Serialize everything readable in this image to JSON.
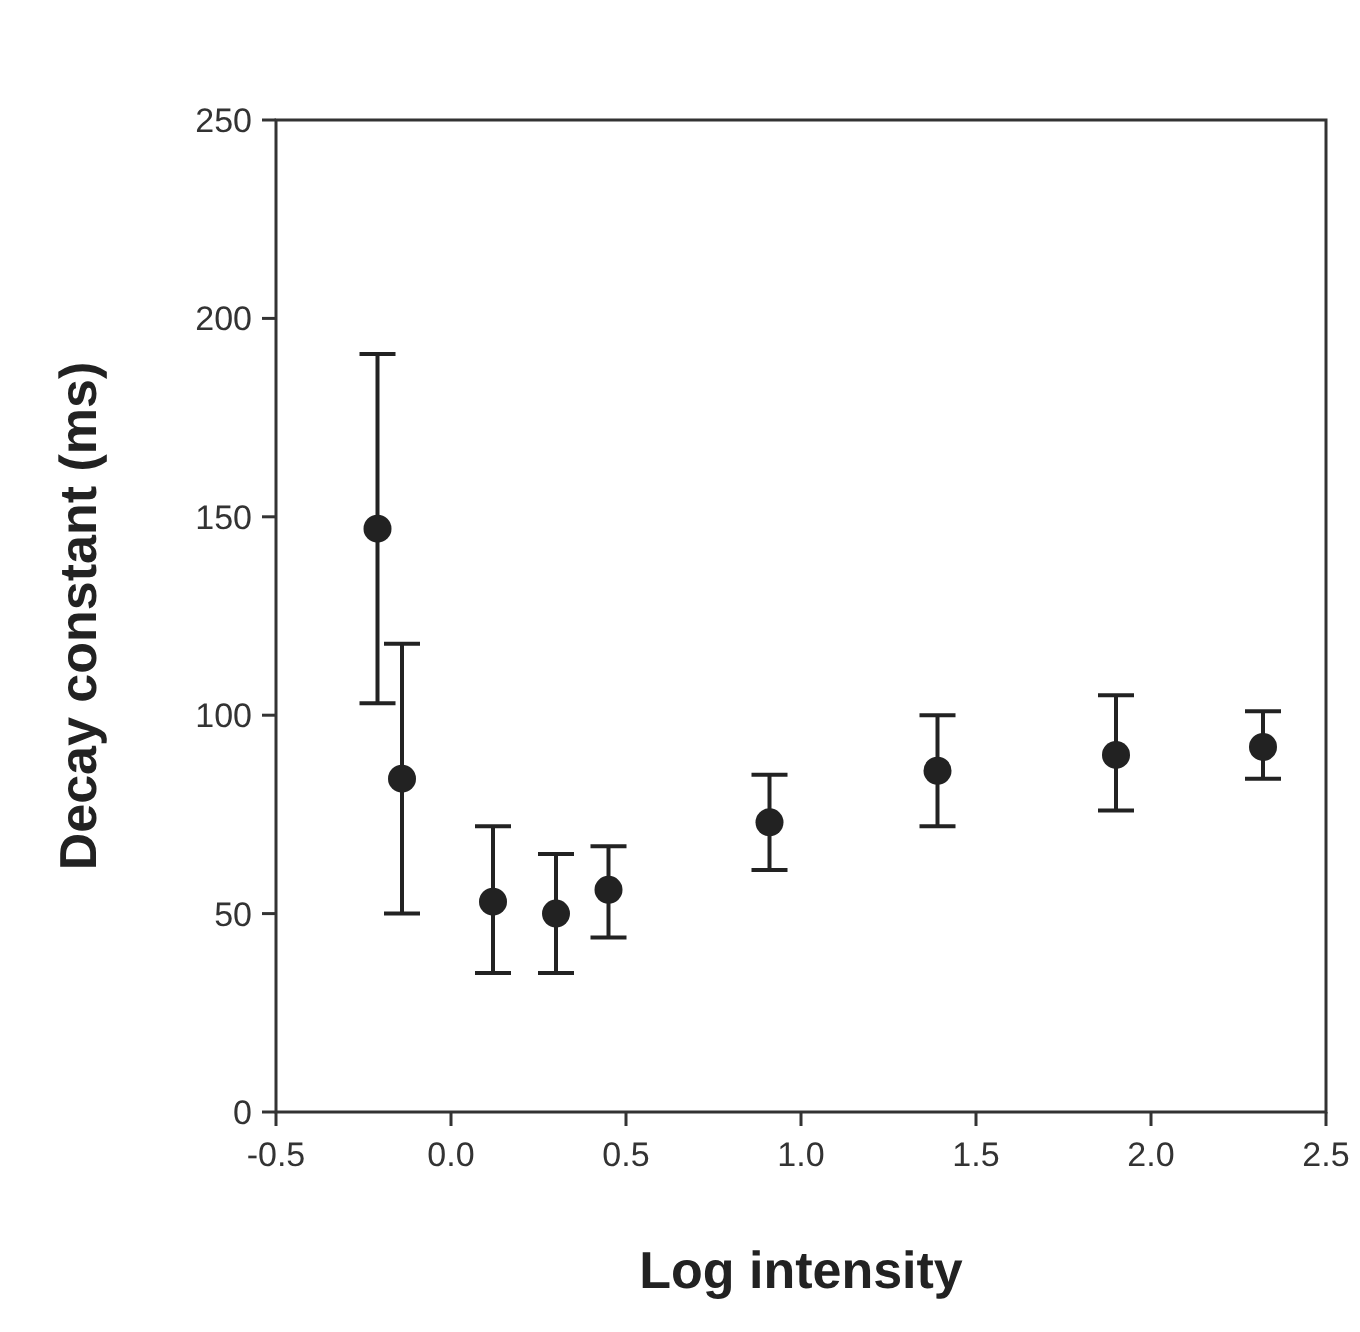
{
  "chart_data": {
    "type": "scatter",
    "xlabel": "Log intensity",
    "ylabel": "Decay constant (ms)",
    "xlim": [
      -0.5,
      2.5
    ],
    "ylim": [
      0,
      250
    ],
    "xticks": [
      -0.5,
      {
        "value": 0,
        "label": "0.0"
      },
      0.5,
      {
        "value": 1,
        "label": "1.0"
      },
      1.5,
      {
        "value": 2,
        "label": "2.0"
      },
      2.5
    ],
    "yticks": [
      0,
      50,
      100,
      150,
      200,
      250
    ],
    "grid": false,
    "marker": "circle",
    "series": [
      {
        "color": "#222222",
        "x": [
          -0.21,
          -0.14,
          0.12,
          0.3,
          0.45,
          0.91,
          1.39,
          1.9,
          2.32
        ],
        "values": [
          147,
          84,
          53,
          50,
          56,
          73,
          86,
          90,
          92
        ],
        "errors": [
          [
            103,
            191
          ],
          [
            50,
            118
          ],
          [
            35,
            72
          ],
          [
            35,
            65
          ],
          [
            44,
            67
          ],
          [
            61,
            85
          ],
          [
            72,
            100
          ],
          [
            76,
            105
          ],
          [
            84,
            101
          ]
        ]
      }
    ]
  }
}
